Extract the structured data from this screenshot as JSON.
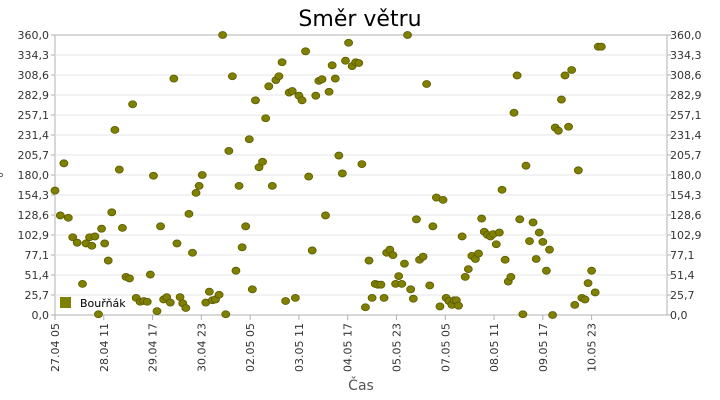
{
  "chart_data": {
    "type": "scatter",
    "title": "Směr větru",
    "xlabel": "Čas",
    "ylabel": "°",
    "ylim": [
      0,
      360
    ],
    "xlim": [
      0,
      13.8
    ],
    "grid": true,
    "legend_position": "bottom-left",
    "y_ticks": [
      "0,0",
      "25,7",
      "51,4",
      "77,1",
      "102,9",
      "128,6",
      "154,3",
      "180,0",
      "205,7",
      "231,4",
      "257,1",
      "282,9",
      "308,6",
      "334,3",
      "360,0"
    ],
    "x_tick_labels": [
      "27.04 05",
      "28.04 11",
      "29.04 17",
      "30.04 23",
      "02.05 05",
      "03.05 11",
      "04.05 17",
      "05.05 23",
      "07.05 05",
      "08.05 11",
      "09.05 17",
      "10.05 23"
    ],
    "series": [
      {
        "name": "Bouřňák",
        "color": "#808000",
        "points": [
          [
            0.0,
            160
          ],
          [
            0.12,
            128
          ],
          [
            0.2,
            195
          ],
          [
            0.3,
            125
          ],
          [
            0.4,
            100
          ],
          [
            0.5,
            93
          ],
          [
            0.62,
            40
          ],
          [
            0.7,
            92
          ],
          [
            0.78,
            100
          ],
          [
            0.83,
            89
          ],
          [
            0.9,
            101
          ],
          [
            0.98,
            1
          ],
          [
            1.05,
            111
          ],
          [
            1.12,
            92
          ],
          [
            1.2,
            70
          ],
          [
            1.28,
            132
          ],
          [
            1.35,
            238
          ],
          [
            1.45,
            187
          ],
          [
            1.52,
            112
          ],
          [
            1.6,
            49
          ],
          [
            1.68,
            47
          ],
          [
            1.75,
            271
          ],
          [
            1.83,
            22
          ],
          [
            1.92,
            17
          ],
          [
            2.0,
            18
          ],
          [
            2.08,
            17
          ],
          [
            2.15,
            52
          ],
          [
            2.22,
            179
          ],
          [
            2.3,
            5
          ],
          [
            2.38,
            114
          ],
          [
            2.45,
            20
          ],
          [
            2.52,
            23
          ],
          [
            2.6,
            16
          ],
          [
            2.68,
            304
          ],
          [
            2.75,
            92
          ],
          [
            2.82,
            23
          ],
          [
            2.88,
            15
          ],
          [
            2.95,
            9
          ],
          [
            3.02,
            130
          ],
          [
            3.1,
            80
          ],
          [
            3.18,
            157
          ],
          [
            3.25,
            166
          ],
          [
            3.32,
            180
          ],
          [
            3.4,
            16
          ],
          [
            3.48,
            30
          ],
          [
            3.55,
            19
          ],
          [
            3.62,
            20
          ],
          [
            3.7,
            26
          ],
          [
            3.78,
            360
          ],
          [
            3.85,
            1
          ],
          [
            3.92,
            211
          ],
          [
            4.0,
            307
          ],
          [
            4.08,
            57
          ],
          [
            4.15,
            166
          ],
          [
            4.22,
            87
          ],
          [
            4.3,
            114
          ],
          [
            4.38,
            226
          ],
          [
            4.45,
            33
          ],
          [
            4.52,
            276
          ],
          [
            4.6,
            190
          ],
          [
            4.68,
            197
          ],
          [
            4.75,
            253
          ],
          [
            4.82,
            294
          ],
          [
            4.9,
            166
          ],
          [
            4.98,
            302
          ],
          [
            5.05,
            307
          ],
          [
            5.12,
            325
          ],
          [
            5.2,
            18
          ],
          [
            5.28,
            286
          ],
          [
            5.35,
            288
          ],
          [
            5.42,
            22
          ],
          [
            5.5,
            282
          ],
          [
            5.57,
            276
          ],
          [
            5.65,
            339
          ],
          [
            5.72,
            178
          ],
          [
            5.8,
            83
          ],
          [
            5.88,
            282
          ],
          [
            5.95,
            301
          ],
          [
            6.02,
            303
          ],
          [
            6.1,
            128
          ],
          [
            6.18,
            287
          ],
          [
            6.25,
            321
          ],
          [
            6.32,
            304
          ],
          [
            6.4,
            205
          ],
          [
            6.48,
            182
          ],
          [
            6.55,
            327
          ],
          [
            6.62,
            350
          ],
          [
            6.7,
            320
          ],
          [
            6.78,
            325
          ],
          [
            6.85,
            324
          ],
          [
            6.92,
            194
          ],
          [
            7.0,
            10
          ],
          [
            7.08,
            70
          ],
          [
            7.15,
            22
          ],
          [
            7.22,
            40
          ],
          [
            7.28,
            39
          ],
          [
            7.35,
            39
          ],
          [
            7.42,
            22
          ],
          [
            7.48,
            80
          ],
          [
            7.55,
            84
          ],
          [
            7.62,
            77
          ],
          [
            7.68,
            40
          ],
          [
            7.75,
            50
          ],
          [
            7.82,
            40
          ],
          [
            7.88,
            66
          ],
          [
            7.95,
            360
          ],
          [
            8.02,
            33
          ],
          [
            8.08,
            21
          ],
          [
            8.15,
            123
          ],
          [
            8.22,
            71
          ],
          [
            8.3,
            75
          ],
          [
            8.38,
            297
          ],
          [
            8.45,
            38
          ],
          [
            8.52,
            114
          ],
          [
            8.6,
            151
          ],
          [
            8.68,
            11
          ],
          [
            8.75,
            148
          ],
          [
            8.82,
            22
          ],
          [
            8.88,
            18
          ],
          [
            8.95,
            13
          ],
          [
            9.0,
            19
          ],
          [
            9.05,
            19
          ],
          [
            9.1,
            12
          ],
          [
            9.18,
            101
          ],
          [
            9.25,
            49
          ],
          [
            9.32,
            59
          ],
          [
            9.4,
            76
          ],
          [
            9.48,
            72
          ],
          [
            9.55,
            79
          ],
          [
            9.62,
            124
          ],
          [
            9.68,
            107
          ],
          [
            9.75,
            103
          ],
          [
            9.82,
            101
          ],
          [
            9.88,
            104
          ],
          [
            9.95,
            91
          ],
          [
            10.02,
            106
          ],
          [
            10.08,
            161
          ],
          [
            10.15,
            71
          ],
          [
            10.22,
            43
          ],
          [
            10.28,
            49
          ],
          [
            10.35,
            260
          ],
          [
            10.42,
            308
          ],
          [
            10.48,
            123
          ],
          [
            10.55,
            1
          ],
          [
            10.62,
            192
          ],
          [
            10.7,
            95
          ],
          [
            10.78,
            119
          ],
          [
            10.85,
            72
          ],
          [
            10.92,
            106
          ],
          [
            11.0,
            94
          ],
          [
            11.08,
            57
          ],
          [
            11.15,
            84
          ],
          [
            11.22,
            0
          ],
          [
            11.28,
            241
          ],
          [
            11.35,
            237
          ],
          [
            11.42,
            277
          ],
          [
            11.5,
            308
          ],
          [
            11.58,
            242
          ],
          [
            11.65,
            315
          ],
          [
            11.72,
            13
          ],
          [
            11.8,
            186
          ],
          [
            11.88,
            22
          ],
          [
            11.95,
            20
          ],
          [
            12.02,
            41
          ],
          [
            12.1,
            57
          ],
          [
            12.18,
            29
          ],
          [
            12.25,
            345
          ],
          [
            12.32,
            345
          ]
        ]
      }
    ]
  }
}
